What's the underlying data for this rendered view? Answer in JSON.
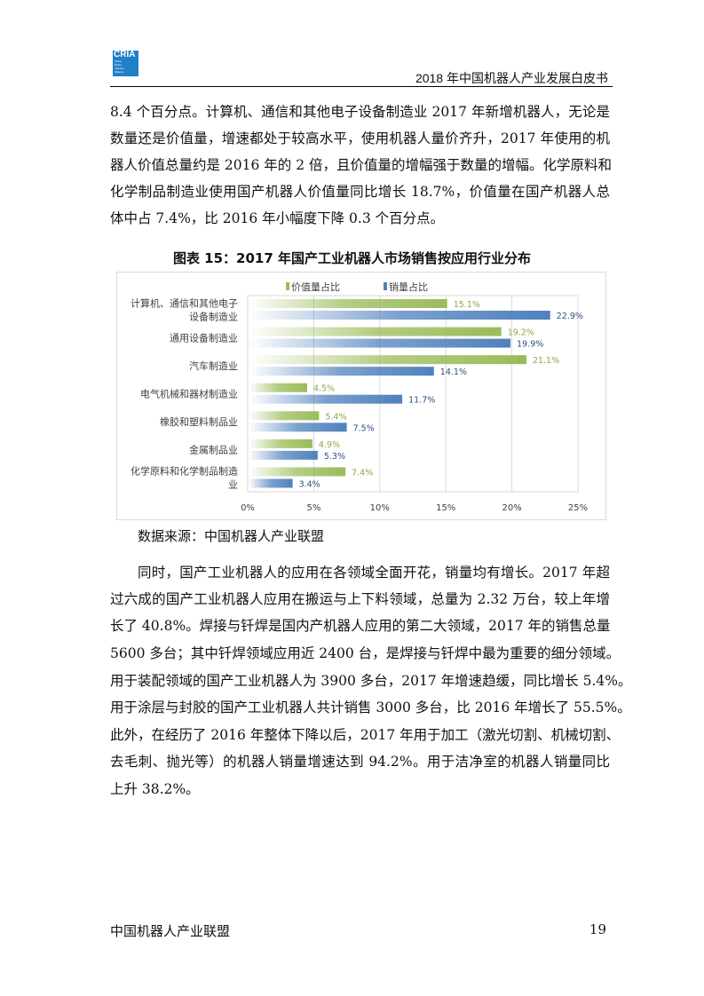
{
  "header": {
    "logo_text": "CRIA",
    "logo_sub": "China Robot Industry Alliance",
    "title": "2018 年中国机器人产业发展白皮书"
  },
  "paragraph1": [
    "8.4 个百分点。计算机、通信和其他电子设备制造业 2017 年新增机器人，无论是",
    "数量还是价值量，增速都处于较高水平，使用机器人量价齐升，2017 年使用的机",
    "器人价值总量约是 2016 年的 2 倍，且价值量的增幅强于数量的增幅。化学原料和",
    "化学制品制造业使用国产机器人价值量同比增长 18.7%，价值量在国产机器人总",
    "体中占 7.4%，比 2016 年小幅度下降 0.3 个百分点。"
  ],
  "figure_title": "图表 15：2017 年国产工业机器人市场销售按应用行业分布",
  "source": "数据来源：中国机器人产业联盟",
  "paragraph2": [
    "同时，国产工业机器人的应用在各领域全面开花，销量均有增长。2017 年超",
    "过六成的国产工业机器人应用在搬运与上下料领域，总量为 2.32 万台，较上年增",
    "长了 40.8%。焊接与钎焊是国内产机器人应用的第二大领域，2017 年的销售总量",
    "5600 多台；其中钎焊领域应用近 2400 台，是焊接与钎焊中最为重要的细分领域。",
    "用于装配领域的国产工业机器人为 3900 多台，2017 年增速趋缓，同比增长 5.4%。",
    "用于涂层与封胶的国产工业机器人共计销售 3000 多台，比 2016 年增长了 55.5%。",
    "此外，在经历了 2016 年整体下降以后，2017 年用于加工（激光切割、机械切割、",
    "去毛刺、抛光等）的机器人销量增速达到 94.2%。用于洁净室的机器人销量同比",
    "上升 38.2%。"
  ],
  "footer": {
    "left": "中国机器人产业联盟",
    "page": "19"
  },
  "chart_data": {
    "type": "bar",
    "orientation": "horizontal",
    "categories": [
      [
        "计算机、通信和其他电子",
        "设备制造业"
      ],
      [
        "通用设备制造业"
      ],
      [
        "汽车制造业"
      ],
      [
        "电气机械和器材制造业"
      ],
      [
        "橡胶和塑料制品业"
      ],
      [
        "金属制品业"
      ],
      [
        "化学原料和化学制品制造",
        "业"
      ]
    ],
    "series": [
      {
        "name": "价值量占比",
        "color": "#9bbb59",
        "values": [
          15.1,
          19.2,
          21.1,
          4.5,
          5.4,
          4.9,
          7.4
        ],
        "labels": [
          "15.1%",
          "19.2%",
          "21.1%",
          "4.5%",
          "5.4%",
          "4.9%",
          "7.4%"
        ]
      },
      {
        "name": "销量占比",
        "color": "#4f81bd",
        "values": [
          22.9,
          19.9,
          14.1,
          11.7,
          7.5,
          5.3,
          3.4
        ],
        "labels": [
          "22.9%",
          "19.9%",
          "14.1%",
          "11.7%",
          "7.5%",
          "5.3%",
          "3.4%"
        ]
      }
    ],
    "xlim": [
      0,
      25
    ],
    "xticks": [
      "0%",
      "5%",
      "10%",
      "15%",
      "20%",
      "25%"
    ],
    "grid": true,
    "legend": "top"
  }
}
